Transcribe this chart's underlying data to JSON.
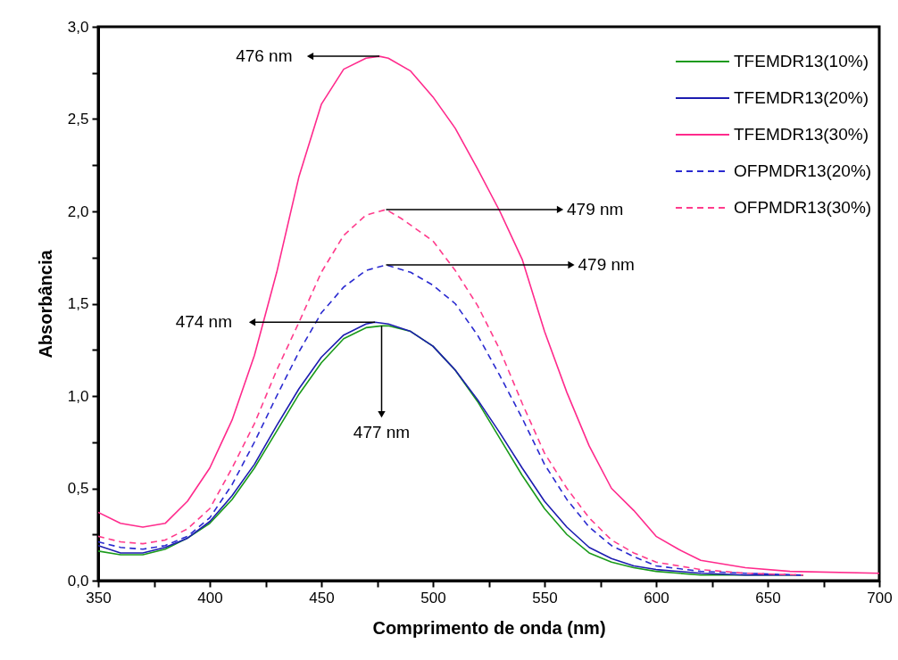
{
  "chart_data": {
    "type": "line",
    "xlabel": "Comprimento de onda (nm)",
    "ylabel": "Absorbância",
    "xlim": [
      350,
      700
    ],
    "ylim": [
      0,
      3
    ],
    "xticks": [
      350,
      {
        "value": 375,
        "label": null
      },
      400,
      {
        "value": 425,
        "label": null
      },
      450,
      {
        "value": 475,
        "label": null
      },
      500,
      {
        "value": 525,
        "label": null
      },
      550,
      {
        "value": 575,
        "label": null
      },
      600,
      {
        "value": 625,
        "label": null
      },
      650,
      {
        "value": 675,
        "label": null
      },
      700
    ],
    "yticks": [
      {
        "value": 0,
        "label": "0,0"
      },
      {
        "value": 0.25,
        "label": null
      },
      {
        "value": 0.5,
        "label": "0,5"
      },
      {
        "value": 0.75,
        "label": null
      },
      {
        "value": 1,
        "label": "1,0"
      },
      {
        "value": 1.25,
        "label": null
      },
      {
        "value": 1.5,
        "label": "1,5"
      },
      {
        "value": 1.75,
        "label": null
      },
      {
        "value": 2,
        "label": "2,0"
      },
      {
        "value": 2.25,
        "label": null
      },
      {
        "value": 2.5,
        "label": "2,5"
      },
      {
        "value": 2.75,
        "label": null
      },
      {
        "value": 3,
        "label": "3,0"
      }
    ],
    "grid": false,
    "legend": "top right",
    "marker": "none",
    "series": [
      {
        "name": "TFEMDR13(10%)",
        "color": "#1a9a1a",
        "line_style": "solid",
        "x": [
          350,
          360,
          370,
          380,
          390,
          400,
          410,
          420,
          430,
          440,
          450,
          460,
          470,
          477,
          480,
          490,
          500,
          510,
          520,
          530,
          540,
          550,
          560,
          570,
          580,
          590,
          600,
          620,
          640,
          666
        ],
        "values": [
          0.16,
          0.14,
          0.14,
          0.17,
          0.23,
          0.31,
          0.44,
          0.61,
          0.81,
          1.01,
          1.18,
          1.31,
          1.37,
          1.38,
          1.38,
          1.35,
          1.27,
          1.14,
          0.97,
          0.77,
          0.57,
          0.39,
          0.25,
          0.15,
          0.1,
          0.07,
          0.05,
          0.03,
          0.03,
          0.03
        ]
      },
      {
        "name": "TFEMDR13(20%)",
        "color": "#1c1cb0",
        "line_style": "solid",
        "x": [
          350,
          360,
          370,
          380,
          390,
          400,
          410,
          420,
          430,
          440,
          450,
          460,
          470,
          474,
          480,
          490,
          500,
          510,
          520,
          530,
          540,
          550,
          560,
          570,
          580,
          590,
          600,
          620,
          640,
          666
        ],
        "values": [
          0.19,
          0.15,
          0.15,
          0.18,
          0.23,
          0.32,
          0.46,
          0.63,
          0.84,
          1.04,
          1.21,
          1.33,
          1.39,
          1.4,
          1.39,
          1.35,
          1.27,
          1.14,
          0.98,
          0.8,
          0.61,
          0.43,
          0.29,
          0.18,
          0.12,
          0.08,
          0.06,
          0.04,
          0.03,
          0.03
        ]
      },
      {
        "name": "TFEMDR13(30%)",
        "color": "#ff2a8c",
        "line_style": "solid",
        "x": [
          350,
          360,
          370,
          380,
          390,
          400,
          410,
          420,
          430,
          440,
          450,
          460,
          470,
          476,
          480,
          490,
          500,
          510,
          520,
          530,
          540,
          550,
          560,
          570,
          580,
          590,
          600,
          610,
          620,
          640,
          660,
          700
        ],
        "values": [
          0.37,
          0.31,
          0.29,
          0.31,
          0.43,
          0.61,
          0.87,
          1.22,
          1.67,
          2.19,
          2.58,
          2.77,
          2.83,
          2.84,
          2.83,
          2.76,
          2.62,
          2.45,
          2.23,
          2.0,
          1.74,
          1.35,
          1.02,
          0.73,
          0.5,
          0.38,
          0.24,
          0.17,
          0.11,
          0.07,
          0.05,
          0.04
        ]
      },
      {
        "name": "OFPMDR13(20%)",
        "color": "#2a2ad0",
        "line_style": "dashed",
        "x": [
          350,
          360,
          370,
          380,
          390,
          400,
          410,
          420,
          430,
          440,
          450,
          460,
          470,
          479,
          490,
          500,
          510,
          520,
          530,
          540,
          550,
          560,
          570,
          580,
          590,
          600,
          620,
          640,
          666
        ],
        "values": [
          0.21,
          0.18,
          0.17,
          0.19,
          0.24,
          0.34,
          0.52,
          0.75,
          1.0,
          1.24,
          1.45,
          1.59,
          1.68,
          1.71,
          1.67,
          1.6,
          1.5,
          1.33,
          1.11,
          0.88,
          0.63,
          0.44,
          0.29,
          0.19,
          0.13,
          0.08,
          0.05,
          0.04,
          0.03
        ]
      },
      {
        "name": "OFPMDR13(30%)",
        "color": "#ff3c8c",
        "line_style": "dashed",
        "x": [
          350,
          360,
          370,
          380,
          390,
          400,
          410,
          420,
          430,
          440,
          450,
          460,
          470,
          479,
          486,
          500,
          510,
          520,
          530,
          540,
          550,
          560,
          570,
          580,
          590,
          600,
          620,
          640,
          666
        ],
        "values": [
          0.24,
          0.21,
          0.2,
          0.22,
          0.28,
          0.39,
          0.61,
          0.85,
          1.14,
          1.4,
          1.67,
          1.87,
          1.98,
          2.01,
          1.96,
          1.84,
          1.68,
          1.49,
          1.25,
          0.96,
          0.69,
          0.5,
          0.34,
          0.22,
          0.15,
          0.1,
          0.06,
          0.04,
          0.03
        ]
      }
    ],
    "annotations": [
      {
        "text": "476 nm",
        "x": 476,
        "y": 2.84
      },
      {
        "text": "479 nm",
        "x": 479,
        "y": 2.01
      },
      {
        "text": "479 nm",
        "x": 479,
        "y": 1.71
      },
      {
        "text": "474 nm",
        "x": 474,
        "y": 1.4
      },
      {
        "text": "477 nm",
        "x": 477,
        "y": 1.38
      }
    ]
  }
}
